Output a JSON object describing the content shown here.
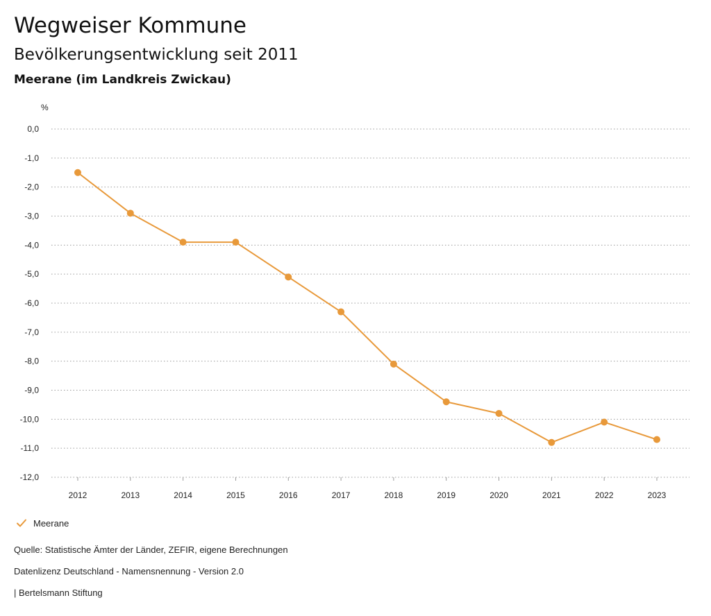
{
  "header": {
    "title": "Wegweiser Kommune",
    "subtitle": "Bevölkerungsentwicklung seit 2011",
    "region": "Meerane (im Landkreis Zwickau)"
  },
  "chart_data": {
    "type": "line",
    "ylabel": "%",
    "xlabel": "",
    "ylim": [
      -12,
      0
    ],
    "yticks": [
      "0,0",
      "-1,0",
      "-2,0",
      "-3,0",
      "-4,0",
      "-5,0",
      "-6,0",
      "-7,0",
      "-8,0",
      "-9,0",
      "-10,0",
      "-11,0",
      "-12,0"
    ],
    "categories": [
      "2012",
      "2013",
      "2014",
      "2015",
      "2016",
      "2017",
      "2018",
      "2019",
      "2020",
      "2021",
      "2022",
      "2023"
    ],
    "series": [
      {
        "name": "Meerane",
        "color": "#e8993a",
        "values": [
          -1.5,
          -2.9,
          -3.9,
          -3.9,
          -5.1,
          -6.3,
          -8.1,
          -9.4,
          -9.8,
          -10.8,
          -10.1,
          -10.7
        ]
      }
    ],
    "grid": true,
    "legend": "bottom-left"
  },
  "legend": {
    "items": [
      {
        "label": "Meerane",
        "icon": "checkmark-icon",
        "color": "#e8993a"
      }
    ]
  },
  "footer": {
    "source": "Quelle: Statistische Ämter der Länder, ZEFIR, eigene Berechnungen",
    "license": "Datenlizenz Deutschland - Namensnennung - Version 2.0",
    "publisher": "| Bertelsmann Stiftung"
  }
}
